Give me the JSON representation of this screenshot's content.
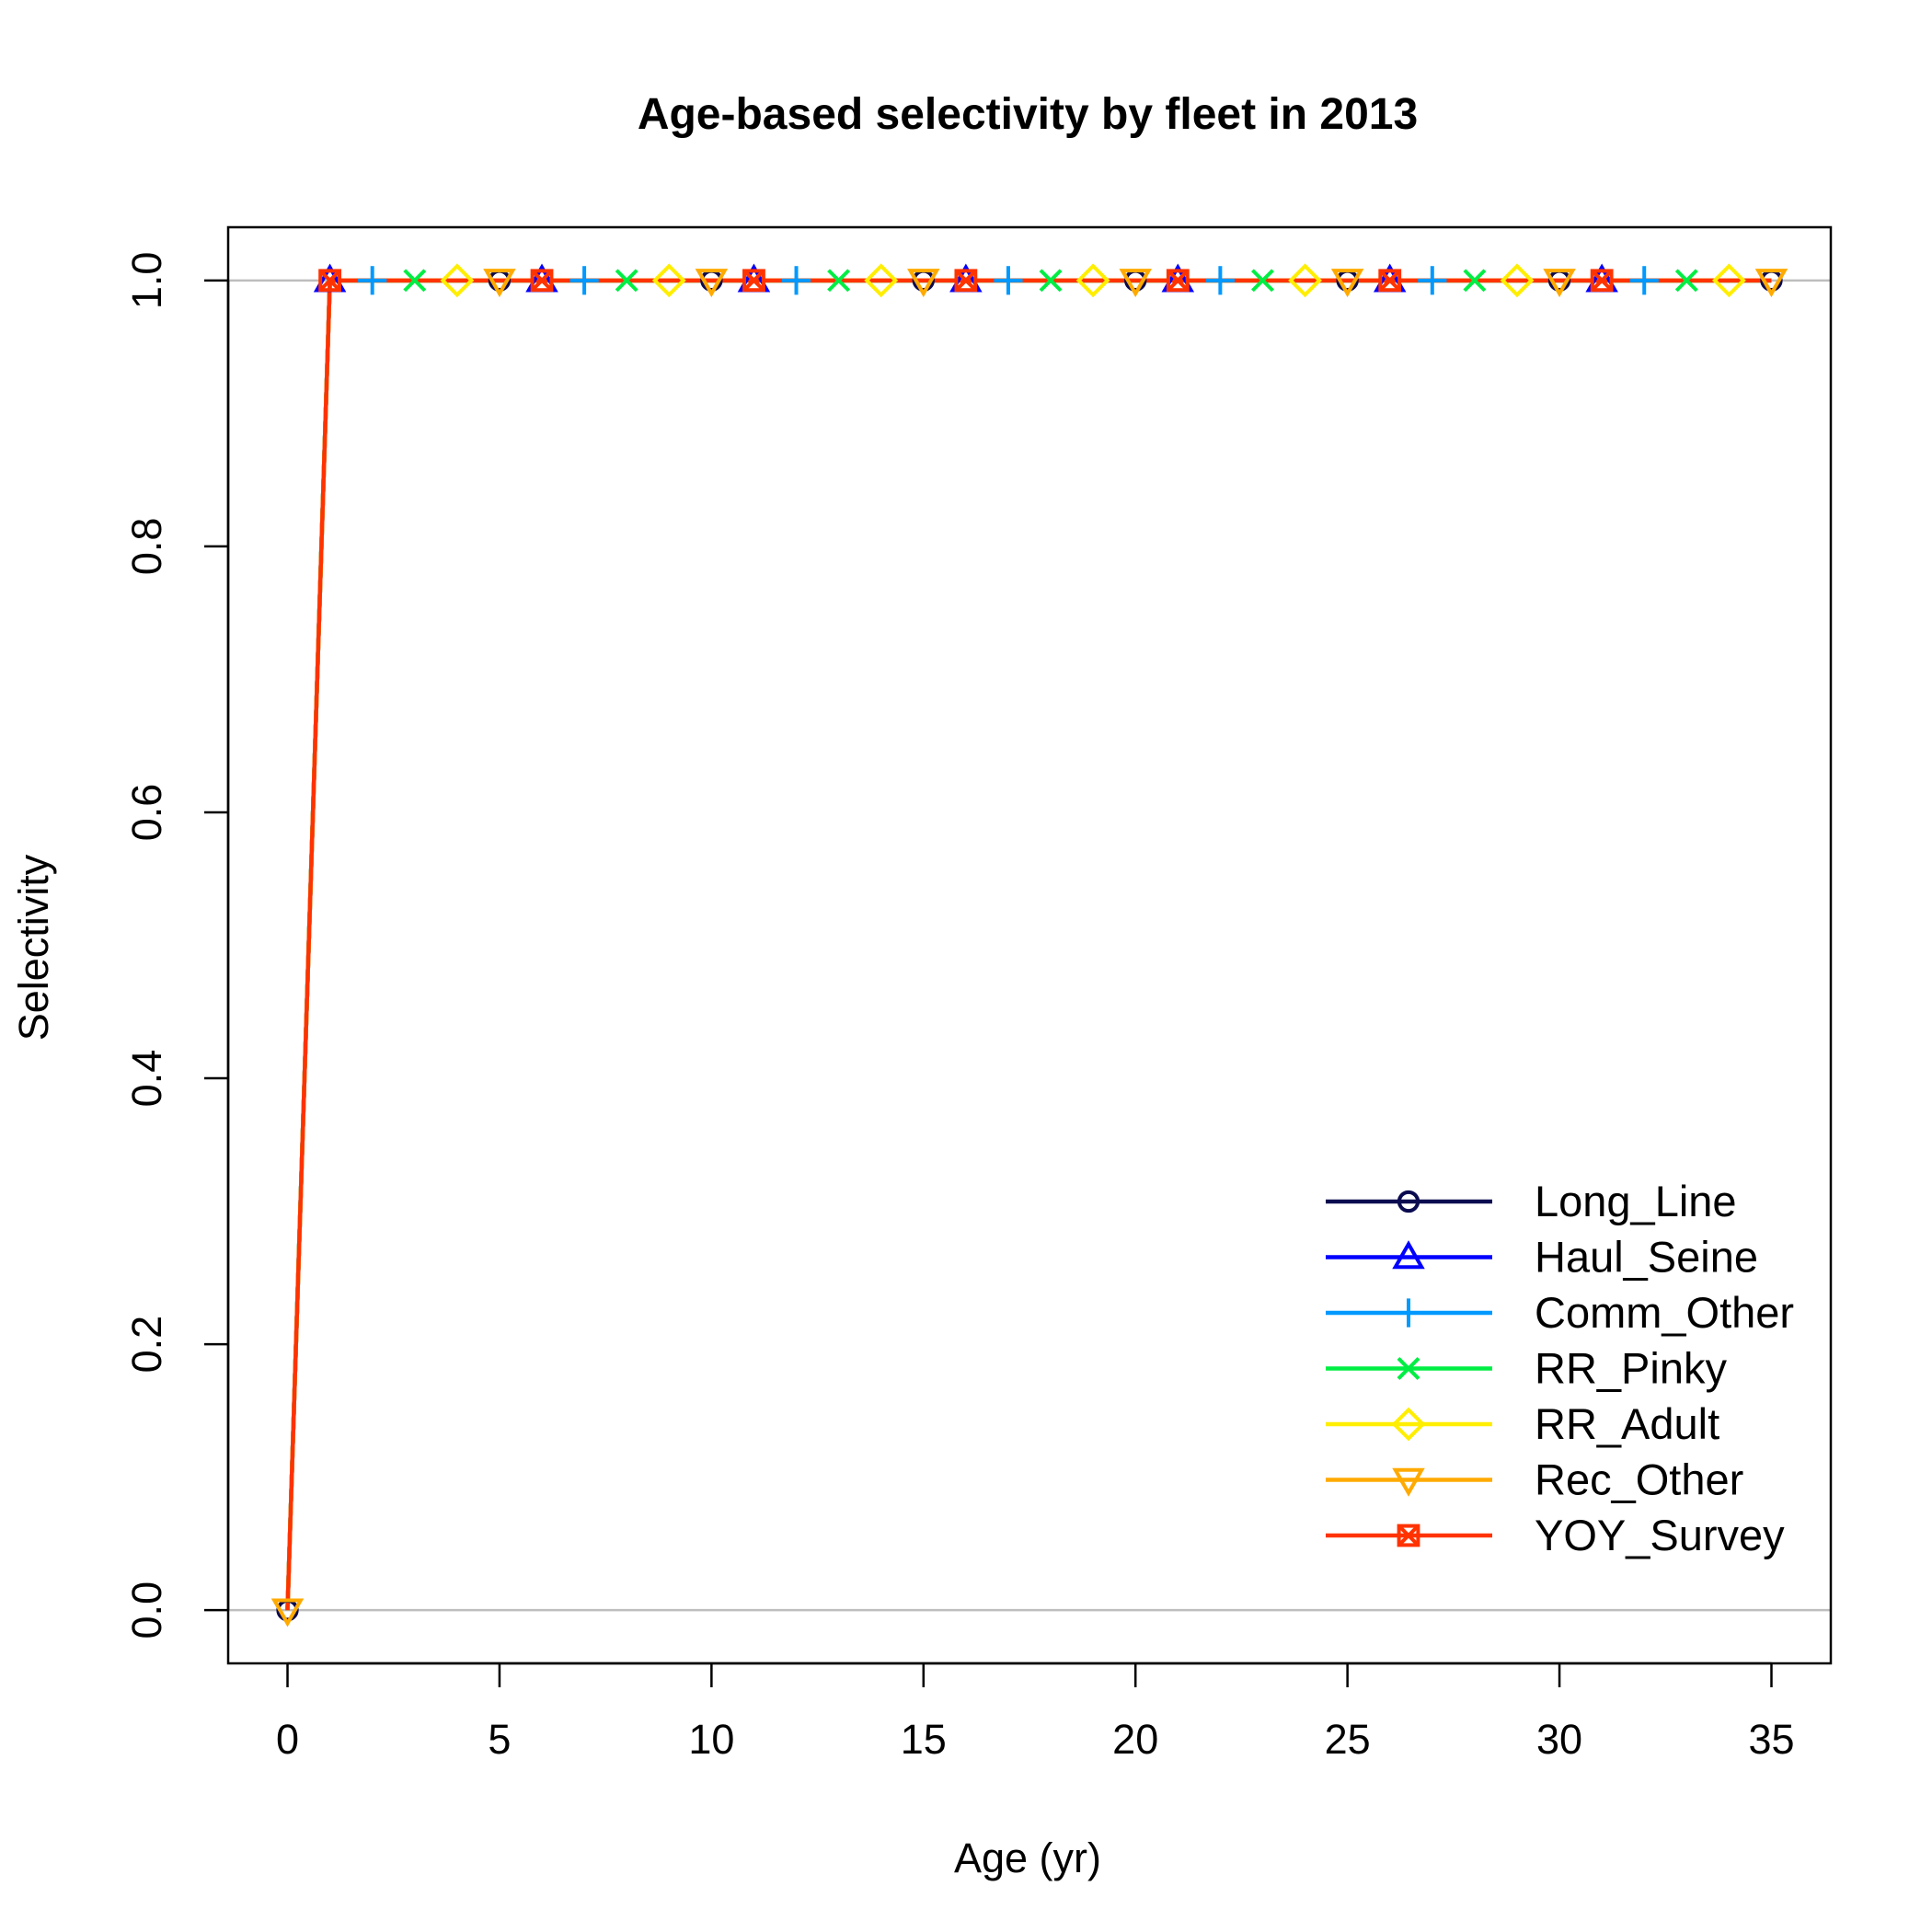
{
  "chart_data": {
    "type": "line",
    "title": "Age-based selectivity by fleet in 2013",
    "xlabel": "Age (yr)",
    "ylabel": "Selectivity",
    "xlim": [
      -1.4,
      36.4
    ],
    "ylim": [
      -0.04,
      1.04
    ],
    "x_ticks": [
      0,
      5,
      10,
      15,
      20,
      25,
      30,
      35
    ],
    "x_tick_labels": [
      "0",
      "5",
      "10",
      "15",
      "20",
      "25",
      "30",
      "35"
    ],
    "y_ticks": [
      0,
      0.2,
      0.4,
      0.6,
      0.8,
      1
    ],
    "y_tick_labels": [
      "0.0",
      "0.2",
      "0.4",
      "0.6",
      "0.8",
      "1.0"
    ],
    "reference_lines_y": [
      0,
      1
    ],
    "reference_line_color": "#bebebe",
    "grid": false,
    "legend_position": "bottom-right",
    "x": [
      0,
      1,
      2,
      3,
      4,
      5,
      6,
      7,
      8,
      9,
      10,
      11,
      12,
      13,
      14,
      15,
      16,
      17,
      18,
      19,
      20,
      21,
      22,
      23,
      24,
      25,
      26,
      27,
      28,
      29,
      30,
      31,
      32,
      33,
      34,
      35
    ],
    "series": [
      {
        "name": "Long_Line",
        "color": "#0a0a50",
        "marker": "circle",
        "marker_offset": 0,
        "values": [
          0,
          1,
          1,
          1,
          1,
          1,
          1,
          1,
          1,
          1,
          1,
          1,
          1,
          1,
          1,
          1,
          1,
          1,
          1,
          1,
          1,
          1,
          1,
          1,
          1,
          1,
          1,
          1,
          1,
          1,
          1,
          1,
          1,
          1,
          1,
          1
        ]
      },
      {
        "name": "Haul_Seine",
        "color": "#0000ff",
        "marker": "triangle-up",
        "marker_offset": 1,
        "values": [
          0,
          1,
          1,
          1,
          1,
          1,
          1,
          1,
          1,
          1,
          1,
          1,
          1,
          1,
          1,
          1,
          1,
          1,
          1,
          1,
          1,
          1,
          1,
          1,
          1,
          1,
          1,
          1,
          1,
          1,
          1,
          1,
          1,
          1,
          1,
          1
        ]
      },
      {
        "name": "Comm_Other",
        "color": "#0099ff",
        "marker": "plus",
        "marker_offset": 2,
        "values": [
          0,
          1,
          1,
          1,
          1,
          1,
          1,
          1,
          1,
          1,
          1,
          1,
          1,
          1,
          1,
          1,
          1,
          1,
          1,
          1,
          1,
          1,
          1,
          1,
          1,
          1,
          1,
          1,
          1,
          1,
          1,
          1,
          1,
          1,
          1,
          1
        ]
      },
      {
        "name": "RR_Pinky",
        "color": "#00ee44",
        "marker": "cross",
        "marker_offset": 3,
        "values": [
          0,
          1,
          1,
          1,
          1,
          1,
          1,
          1,
          1,
          1,
          1,
          1,
          1,
          1,
          1,
          1,
          1,
          1,
          1,
          1,
          1,
          1,
          1,
          1,
          1,
          1,
          1,
          1,
          1,
          1,
          1,
          1,
          1,
          1,
          1,
          1
        ]
      },
      {
        "name": "RR_Adult",
        "color": "#ffee00",
        "marker": "diamond",
        "marker_offset": 4,
        "values": [
          0,
          1,
          1,
          1,
          1,
          1,
          1,
          1,
          1,
          1,
          1,
          1,
          1,
          1,
          1,
          1,
          1,
          1,
          1,
          1,
          1,
          1,
          1,
          1,
          1,
          1,
          1,
          1,
          1,
          1,
          1,
          1,
          1,
          1,
          1,
          1
        ]
      },
      {
        "name": "Rec_Other",
        "color": "#ffaa00",
        "marker": "triangle-down",
        "marker_offset": 0,
        "values": [
          0,
          1,
          1,
          1,
          1,
          1,
          1,
          1,
          1,
          1,
          1,
          1,
          1,
          1,
          1,
          1,
          1,
          1,
          1,
          1,
          1,
          1,
          1,
          1,
          1,
          1,
          1,
          1,
          1,
          1,
          1,
          1,
          1,
          1,
          1,
          1
        ]
      },
      {
        "name": "YOY_Survey",
        "color": "#ff3300",
        "marker": "square-x",
        "marker_offset": 1,
        "values": [
          0,
          1,
          1,
          1,
          1,
          1,
          1,
          1,
          1,
          1,
          1,
          1,
          1,
          1,
          1,
          1,
          1,
          1,
          1,
          1,
          1,
          1,
          1,
          1,
          1,
          1,
          1,
          1,
          1,
          1,
          1,
          1,
          1,
          1,
          1,
          1
        ]
      }
    ]
  }
}
